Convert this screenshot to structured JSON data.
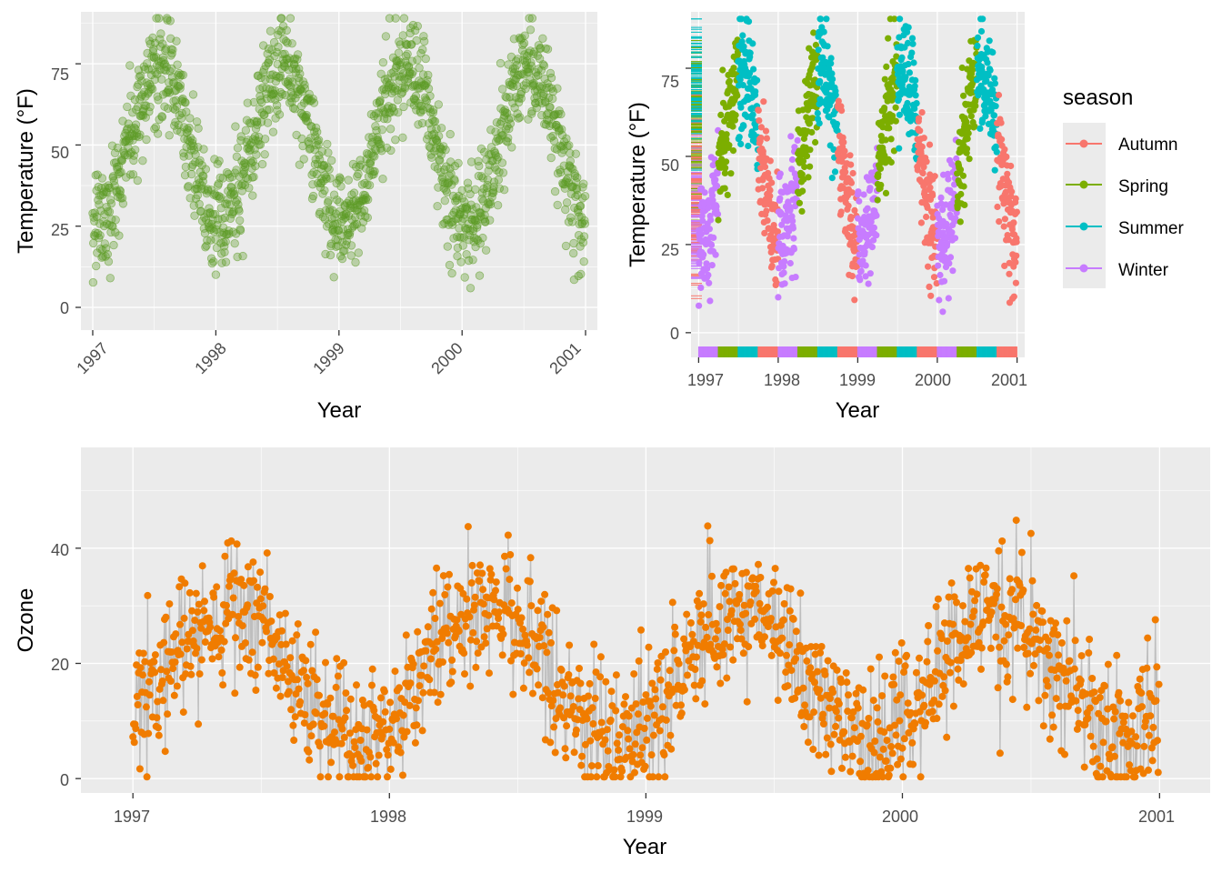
{
  "colors": {
    "panel_bg": "#EBEBEB",
    "grid": "#FFFFFF",
    "tick": "#333333",
    "temperature_points": "#5C9B25",
    "ozone_points": "#F07C00",
    "ozone_segments": "#BEBEBE",
    "autumn": "#F8766D",
    "spring": "#7CAE00",
    "summer": "#00BFC4",
    "winter": "#C77CFF"
  },
  "chart_data": [
    {
      "id": "temperature-scatter",
      "type": "scatter",
      "title": "",
      "xlabel": "Year",
      "ylabel": "Temperature (°F)",
      "xlim": [
        "1996-11-27",
        "2001-02-05"
      ],
      "ylim": [
        -7,
        91
      ],
      "x_ticks": [
        "1997",
        "1998",
        "1999",
        "2000",
        "2001"
      ],
      "y_ticks": [
        0,
        25,
        50,
        75
      ],
      "x_tick_angle": 45,
      "grid": true,
      "point_alpha": 0.35,
      "sampling": "daily 1997-01-01 to 2000-12-31; annual temperature cycle",
      "annual_cycle_f": {
        "min_month": "January",
        "min": 25,
        "max_month": "July",
        "max": 74,
        "noise_sd": 8
      }
    },
    {
      "id": "temperature-by-season",
      "type": "scatter",
      "title": "",
      "xlabel": "Year",
      "ylabel": "Temperature (°F)",
      "xlim": [
        "1996-11-27",
        "2001-02-05"
      ],
      "ylim": [
        -7,
        91
      ],
      "x_ticks": [
        "1997",
        "1998",
        "1999",
        "2000",
        "2001"
      ],
      "y_ticks": [
        0,
        25,
        50,
        75
      ],
      "grid": true,
      "rug": true,
      "legend": {
        "title": "season",
        "position": "right",
        "entries": [
          "Autumn",
          "Spring",
          "Summer",
          "Winter"
        ]
      },
      "season_months": {
        "Winter": [
          1,
          2,
          3
        ],
        "Spring": [
          4,
          5,
          6
        ],
        "Summer": [
          7,
          8,
          9
        ],
        "Autumn": [
          10,
          11,
          12
        ]
      }
    },
    {
      "id": "ozone-lollipop",
      "type": "scatter",
      "title": "",
      "xlabel": "Year",
      "ylabel": "Ozone",
      "xlim": [
        "1996-10-19",
        "2001-03-14"
      ],
      "ylim": [
        -2.5,
        57.5
      ],
      "x_ticks": [
        "1997",
        "1998",
        "1999",
        "2000",
        "2001"
      ],
      "y_ticks": [
        0,
        20,
        40
      ],
      "grid": true,
      "segments_from_previous_day": true,
      "annual_cycle": {
        "min_month": "November",
        "min": 7,
        "max_month": "June",
        "max": 29,
        "noise_sd": 6
      }
    }
  ]
}
